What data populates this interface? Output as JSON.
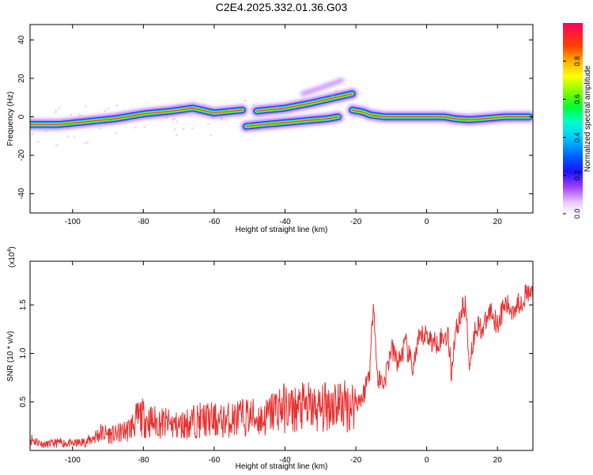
{
  "title": "C2E4.2025.332.01.36.G03",
  "chart_data": [
    {
      "type": "heatmap",
      "xlabel": "Height of straight line (km)",
      "ylabel": "Frequency (Hz)",
      "xlim": [
        -112,
        30
      ],
      "ylim": [
        -50,
        48
      ],
      "xticks": [
        -100,
        -80,
        -60,
        -40,
        -20,
        0,
        20
      ],
      "yticks": [
        -40,
        -20,
        0,
        20,
        40
      ],
      "colorbar": {
        "label": "Normalized spectral amplitude",
        "range": [
          0,
          1
        ],
        "ticks": [
          0.0,
          0.2,
          0.4,
          0.6,
          0.8
        ]
      },
      "tracks": [
        {
          "name": "main",
          "points": [
            [
              -112,
              -4
            ],
            [
              -104,
              -4
            ],
            [
              -96,
              -2.5
            ],
            [
              -88,
              -1
            ],
            [
              -80,
              1.5
            ],
            [
              -72,
              3
            ],
            [
              -66,
              4.5
            ],
            [
              -60,
              2
            ],
            [
              -55,
              3
            ],
            [
              -52,
              3.5
            ]
          ]
        },
        {
          "name": "mid-lower",
          "points": [
            [
              -51,
              -5
            ],
            [
              -46,
              -4
            ],
            [
              -40,
              -3
            ],
            [
              -34,
              -2
            ],
            [
              -28,
              -1
            ],
            [
              -25,
              0
            ]
          ]
        },
        {
          "name": "mid-upper",
          "points": [
            [
              -48,
              3
            ],
            [
              -40,
              4.5
            ],
            [
              -33,
              7
            ],
            [
              -27,
              9.5
            ],
            [
              -21,
              12
            ]
          ]
        },
        {
          "name": "right",
          "points": [
            [
              -21,
              3.5
            ],
            [
              -18,
              2.5
            ],
            [
              -16,
              1
            ],
            [
              -12,
              0
            ],
            [
              -8,
              0
            ],
            [
              -4,
              0
            ],
            [
              0,
              0
            ],
            [
              5,
              0
            ],
            [
              8,
              -1
            ],
            [
              12,
              -1.5
            ],
            [
              16,
              -1
            ],
            [
              22,
              0
            ],
            [
              29,
              0
            ]
          ]
        },
        {
          "name": "faint-upper",
          "points": [
            [
              -35,
              12
            ],
            [
              -30,
              15
            ],
            [
              -24,
              19
            ]
          ]
        }
      ]
    },
    {
      "type": "line",
      "xlabel": "Height of straight line (km)",
      "ylabel": "SNR (10 * v/v)",
      "exponent_label": "(x10",
      "exponent_value": "4",
      "exponent_close": ")",
      "xlim": [
        -112,
        30
      ],
      "ylim": [
        0,
        1.95
      ],
      "xticks": [
        -100,
        -80,
        -60,
        -40,
        -20,
        0,
        20
      ],
      "yticks": [
        0.5,
        1.0,
        1.5
      ],
      "ytick_labels": [
        "0.5",
        "1.0",
        "1.5"
      ],
      "series": [
        {
          "name": "SNR",
          "color": "#e83030",
          "x": [
            -112,
            -108,
            -104,
            -100,
            -96,
            -92,
            -88,
            -84,
            -81,
            -78,
            -74,
            -70,
            -66,
            -62,
            -58,
            -54,
            -50,
            -46,
            -42,
            -38,
            -34,
            -30,
            -26,
            -22,
            -20,
            -18,
            -16,
            -15,
            -14,
            -12,
            -10,
            -8,
            -6,
            -4,
            -2,
            0,
            2,
            4,
            6,
            7,
            8,
            10,
            11,
            12,
            14,
            16,
            18,
            20,
            22,
            24,
            26,
            28,
            30
          ],
          "y": [
            0.12,
            0.06,
            0.08,
            0.07,
            0.09,
            0.18,
            0.16,
            0.22,
            0.35,
            0.3,
            0.28,
            0.25,
            0.3,
            0.32,
            0.3,
            0.33,
            0.35,
            0.32,
            0.45,
            0.42,
            0.45,
            0.42,
            0.5,
            0.45,
            0.5,
            0.55,
            0.85,
            1.6,
            0.75,
            0.7,
            1.05,
            0.9,
            1.1,
            0.85,
            1.15,
            1.2,
            1.1,
            1.15,
            1.2,
            0.8,
            1.2,
            1.45,
            1.5,
            0.9,
            1.3,
            1.25,
            1.45,
            1.3,
            1.5,
            1.45,
            1.52,
            1.6,
            1.62
          ]
        }
      ]
    }
  ]
}
